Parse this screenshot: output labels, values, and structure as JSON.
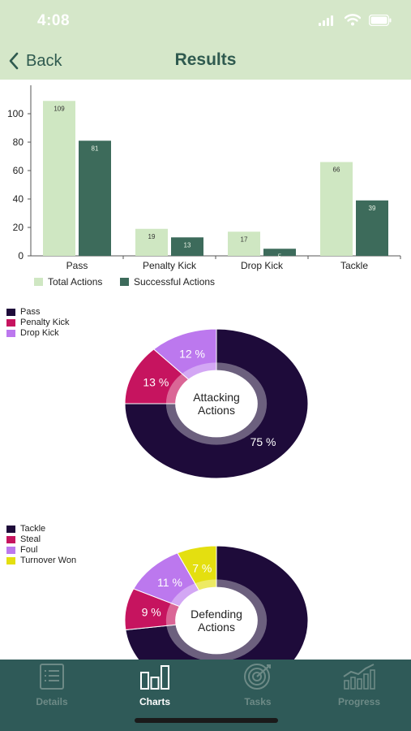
{
  "status_bar": {
    "time": "4:08"
  },
  "nav": {
    "back_label": "Back",
    "title": "Results"
  },
  "bar_chart": {
    "type": "bar",
    "categories": [
      "Pass",
      "Penalty Kick",
      "Drop Kick",
      "Tackle"
    ],
    "series": [
      {
        "name": "Total Actions",
        "values": [
          109,
          19,
          17,
          66
        ],
        "labels": [
          "109",
          "19",
          "17",
          "66"
        ],
        "color": "#cfe7c2"
      },
      {
        "name": "Successful Actions",
        "values": [
          81,
          13,
          5,
          39
        ],
        "labels": [
          "81",
          "13",
          "5",
          "39"
        ],
        "color": "#3d6b5b"
      }
    ],
    "yticks": [
      "0",
      "20",
      "40",
      "60",
      "80",
      "100"
    ],
    "ylim": [
      0,
      120
    ],
    "grid": false,
    "legend_position": "bottom"
  },
  "attacking_chart": {
    "type": "pie",
    "center_label": [
      "Attacking",
      "Actions"
    ],
    "slices": [
      {
        "name": "Pass",
        "value": 75,
        "label": "75 %",
        "color": "#1e0b3a"
      },
      {
        "name": "Penalty Kick",
        "value": 13,
        "label": "13 %",
        "color": "#c6145f"
      },
      {
        "name": "Drop Kick",
        "value": 12,
        "label": "12 %",
        "color": "#bc78ee"
      }
    ]
  },
  "defending_chart": {
    "type": "pie",
    "center_label": [
      "Defending",
      "Actions"
    ],
    "slices": [
      {
        "name": "Tackle",
        "value": 73,
        "label": "",
        "color": "#1e0b3a"
      },
      {
        "name": "Steal",
        "value": 9,
        "label": "9 %",
        "color": "#c6145f"
      },
      {
        "name": "Foul",
        "value": 11,
        "label": "11 %",
        "color": "#bc78ee"
      },
      {
        "name": "Turnover Won",
        "value": 7,
        "label": "7 %",
        "color": "#e4df10"
      }
    ]
  },
  "tabs": [
    {
      "label": "Details",
      "icon": "list-icon",
      "active": false
    },
    {
      "label": "Charts",
      "icon": "bar-chart-icon",
      "active": true
    },
    {
      "label": "Tasks",
      "icon": "target-icon",
      "active": false
    },
    {
      "label": "Progress",
      "icon": "growth-chart-icon",
      "active": false
    }
  ]
}
